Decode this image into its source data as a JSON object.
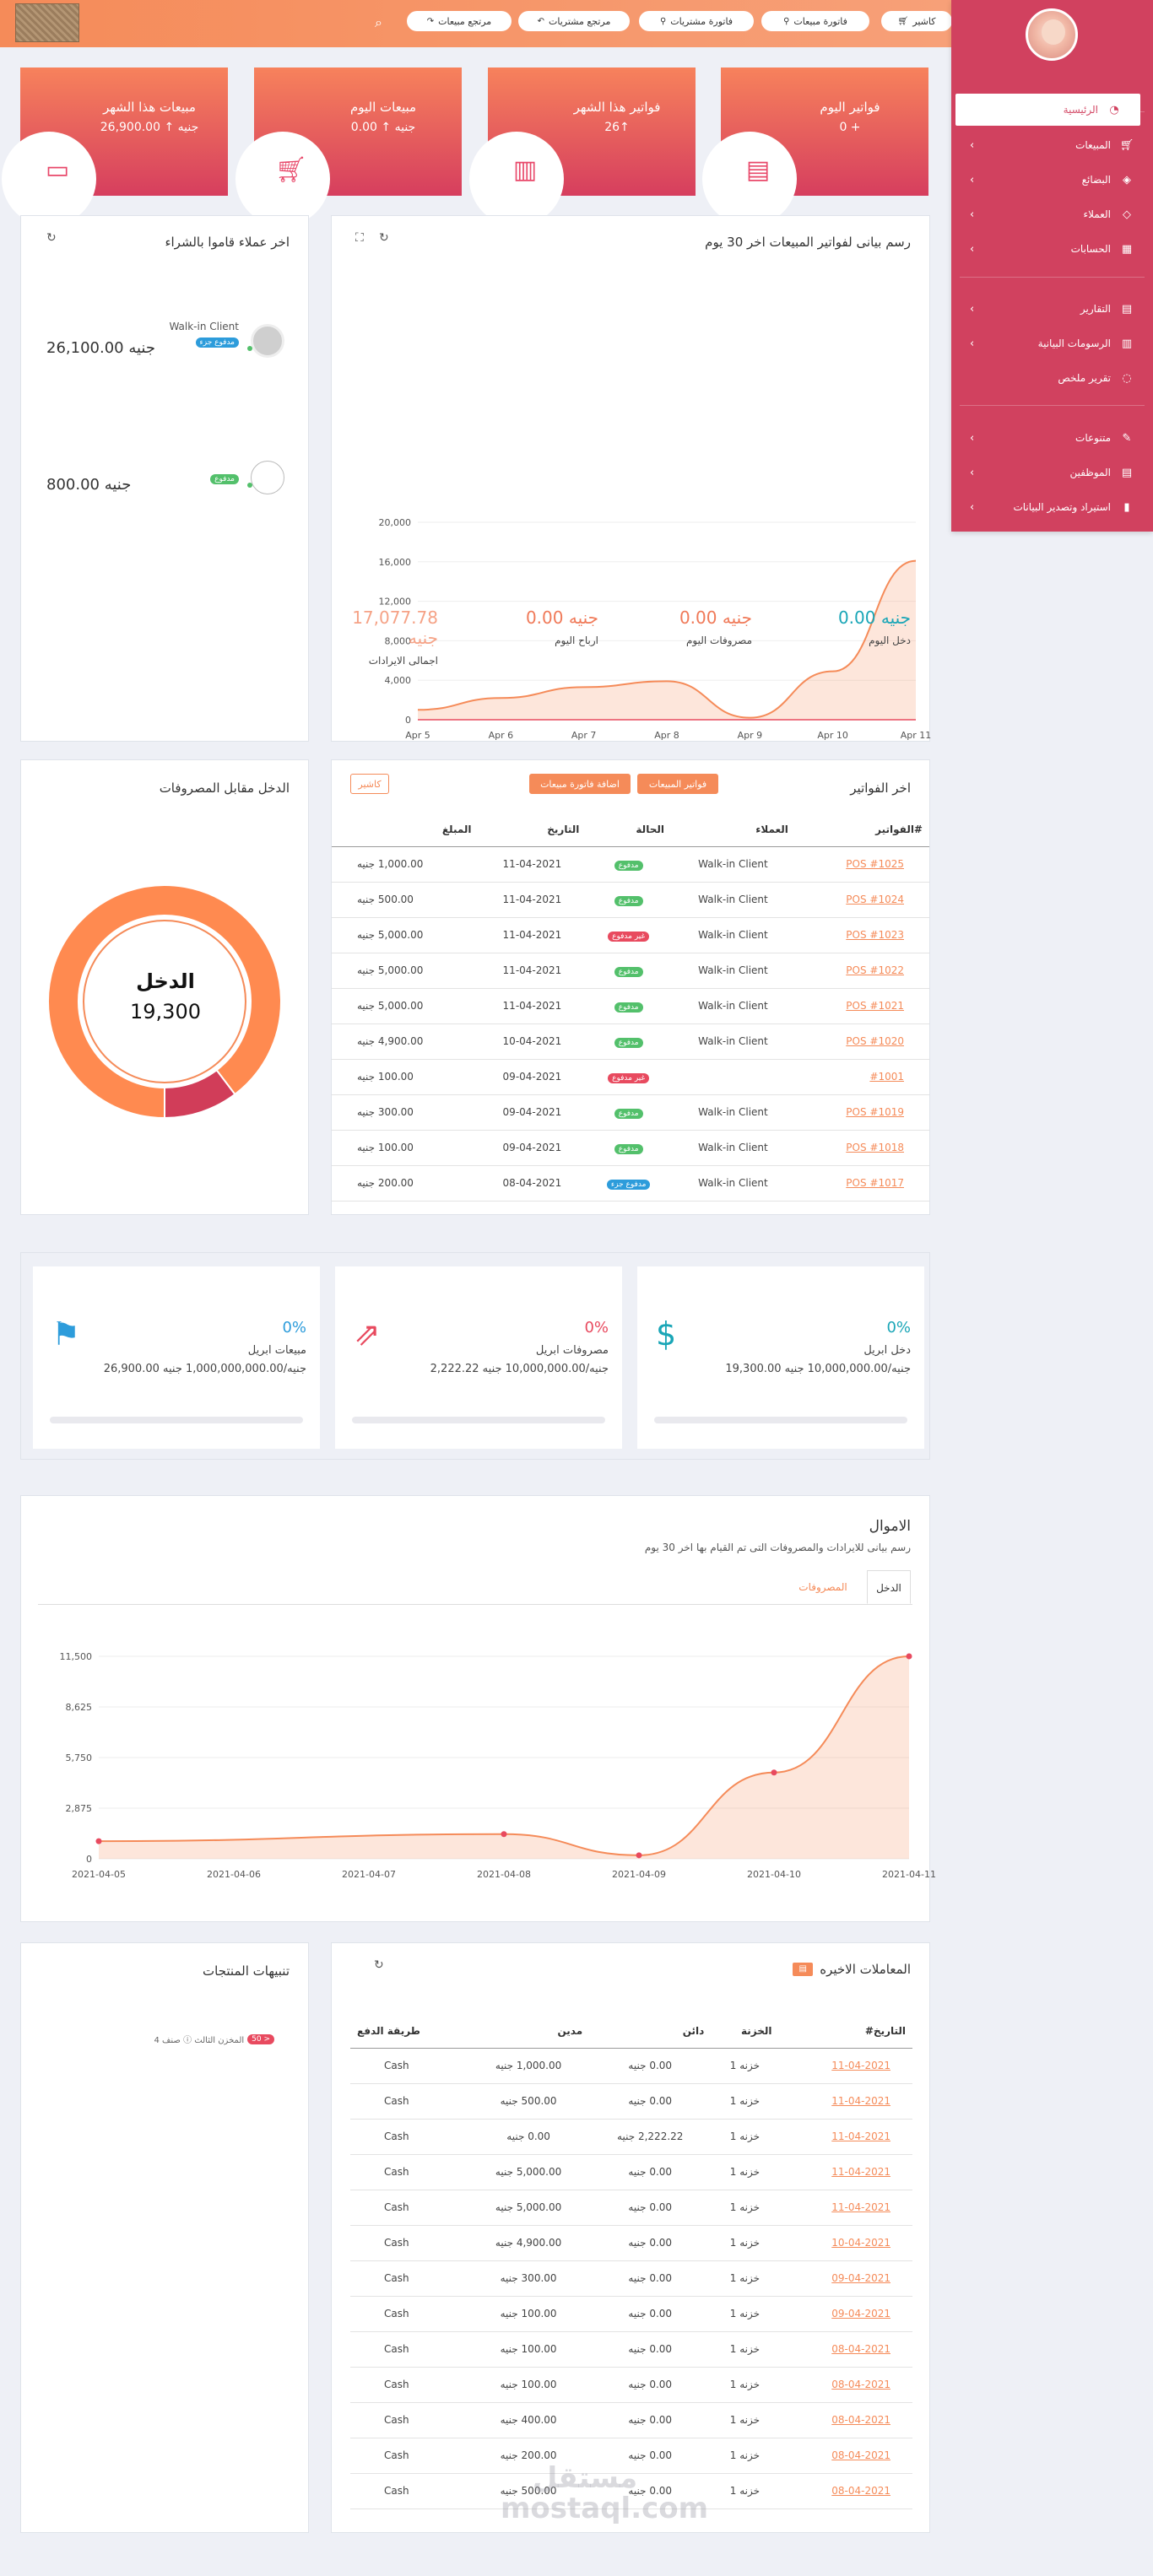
{
  "topbar": {
    "buttons": [
      "كاشير",
      "فاتورة مبيعات",
      "فاتورة مشتريات",
      "مرتجع مشتريات",
      "مرتجع مبيعات"
    ],
    "icons": [
      "cart-icon",
      "bag-icon",
      "bag-icon",
      "reply-icon",
      "share-icon"
    ]
  },
  "sidebar": {
    "items": [
      {
        "label": "الرئيسية",
        "icon": "dashboard-icon",
        "chevron": false,
        "active": true
      },
      {
        "label": "المبيعات",
        "icon": "cart-icon",
        "chevron": true
      },
      {
        "label": "البضائع",
        "icon": "layers-icon",
        "chevron": true
      },
      {
        "label": "العملاء",
        "icon": "diamond-icon",
        "chevron": true
      },
      {
        "label": "الحسابات",
        "icon": "table-icon",
        "chevron": true
      },
      {
        "label": "التقارير",
        "icon": "file-icon",
        "chevron": true
      },
      {
        "label": "الرسومات البيانية",
        "icon": "bar-chart-icon",
        "chevron": true
      },
      {
        "label": "تقرير ملخص",
        "icon": "bulb-icon",
        "chevron": false
      },
      {
        "label": "متنوعات",
        "icon": "edit-icon",
        "chevron": true
      },
      {
        "label": "الموظفين",
        "icon": "file-icon",
        "chevron": true
      },
      {
        "label": "استيراد وتصدير البيانات",
        "icon": "chart-icon",
        "chevron": true
      }
    ]
  },
  "kpis": [
    {
      "title": "فواتير اليوم",
      "value": "0 +",
      "icon": "document-icon"
    },
    {
      "title": "فواتير هذا الشهر",
      "value": "26↑",
      "icon": "notebook-icon"
    },
    {
      "title": "مبيعات اليوم",
      "value": "0.00 ↑ جنيه",
      "icon": "cart-icon"
    },
    {
      "title": "مبيعات هذا الشهر",
      "value": "26,900.00 ↑ جنيه",
      "icon": "wallet-icon"
    }
  ],
  "invoice_chart": {
    "title": "رسم بيانى لفواتير المبيعات اخر 30 يوم",
    "stats": [
      {
        "value": "0.00 جنيه",
        "label": "دخل اليوم",
        "color": "#1aa6b7"
      },
      {
        "value": "0.00 جنيه",
        "label": "مصروفات اليوم",
        "color": "#f07a59"
      },
      {
        "value": "0.00 جنيه",
        "label": "ارباح اليوم",
        "color": "#f07a59"
      },
      {
        "value": "17,077.78 جنيه",
        "label": "اجمالى الايرادات",
        "color": "#f5a286"
      }
    ]
  },
  "last_customers": {
    "title": "اخر عملاء قاموا بالشراء",
    "items": [
      {
        "name": "Walk-in Client",
        "badge": "مدفوع جزء",
        "badge_color": "#2d9cdb",
        "amount": "26,100.00 جنيه"
      },
      {
        "name": "",
        "badge": "مدفوع",
        "badge_color": "#53c06b",
        "amount": "800.00 جنيه"
      }
    ]
  },
  "last_invoices": {
    "title": "اخر الفواتير",
    "buttons": [
      "اضافة فاتورة مبيعات",
      "فواتير المبيعات",
      "كاشير"
    ],
    "headers": [
      "#الفواتير",
      "العملاء",
      "الحالة",
      "التاريخ",
      "المبلغ"
    ],
    "rows": [
      {
        "id": "POS #1025",
        "client": "Walk-in Client",
        "status": "مدفوع",
        "status_color": "#53c06b",
        "date": "11-04-2021",
        "amount": "1,000.00 جنيه"
      },
      {
        "id": "POS #1024",
        "client": "Walk-in Client",
        "status": "مدفوع",
        "status_color": "#53c06b",
        "date": "11-04-2021",
        "amount": "500.00 جنيه"
      },
      {
        "id": "POS #1023",
        "client": "Walk-in Client",
        "status": "غير مدفوع",
        "status_color": "#e84a5f",
        "date": "11-04-2021",
        "amount": "5,000.00 جنيه"
      },
      {
        "id": "POS #1022",
        "client": "Walk-in Client",
        "status": "مدفوع",
        "status_color": "#53c06b",
        "date": "11-04-2021",
        "amount": "5,000.00 جنيه"
      },
      {
        "id": "POS #1021",
        "client": "Walk-in Client",
        "status": "مدفوع",
        "status_color": "#53c06b",
        "date": "11-04-2021",
        "amount": "5,000.00 جنيه"
      },
      {
        "id": "POS #1020",
        "client": "Walk-in Client",
        "status": "مدفوع",
        "status_color": "#53c06b",
        "date": "10-04-2021",
        "amount": "4,900.00 جنيه"
      },
      {
        "id": "#1001",
        "client": "",
        "status": "غير مدفوع",
        "status_color": "#e84a5f",
        "date": "09-04-2021",
        "amount": "100.00 جنيه"
      },
      {
        "id": "POS #1019",
        "client": "Walk-in Client",
        "status": "مدفوع",
        "status_color": "#53c06b",
        "date": "09-04-2021",
        "amount": "300.00 جنيه"
      },
      {
        "id": "POS #1018",
        "client": "Walk-in Client",
        "status": "مدفوع",
        "status_color": "#53c06b",
        "date": "09-04-2021",
        "amount": "100.00 جنيه"
      },
      {
        "id": "POS #1017",
        "client": "Walk-in Client",
        "status": "مدفوع جزء",
        "status_color": "#2d9cdb",
        "date": "08-04-2021",
        "amount": "200.00 جنيه"
      }
    ]
  },
  "income_expense": {
    "title": "الدخل مقابل المصروفات",
    "center_label": "الدخل",
    "center_value": "19,300"
  },
  "month_cards": [
    {
      "pct": "0%",
      "label": "دخل ابريل",
      "value": "19,300.00 جنيه/10,000,000.00 جنيه",
      "color": "#1aa6b7",
      "icon": "money-icon"
    },
    {
      "pct": "0%",
      "label": "مصروفات ابريل",
      "value": "2,222.22 جنيه/10,000,000.00 جنيه",
      "color": "#e84a5f",
      "icon": "external-link-icon"
    },
    {
      "pct": "0%",
      "label": "مبيعات ابريل",
      "value": "26,900.00 جنيه/1,000,000,000.00 جنيه",
      "color": "#2d9cdb",
      "icon": "flag-icon"
    }
  ],
  "money": {
    "title": "الاموال",
    "subtitle": "رسم بيانى للايرادات والمصروفات التى تم القيام بها اخر 30 يوم",
    "tabs": [
      "الدخل",
      "المصروفات"
    ]
  },
  "product_alerts": {
    "title": "تنبيهات المنتجات",
    "item_badge": "50 >",
    "item_text": "صنف 4 ⓘ المخزن الثالث"
  },
  "transactions": {
    "title": "المعاملات الاخيره",
    "headers": [
      "التاريخ#",
      "الخزنة",
      "دائن",
      "مدين",
      "طريقة الدفع"
    ],
    "rows": [
      {
        "date": "11-04-2021",
        "box": "خزنه 1",
        "credit": "0.00 جنيه",
        "debit": "1,000.00 جنيه",
        "method": "Cash"
      },
      {
        "date": "11-04-2021",
        "box": "خزنه 1",
        "credit": "0.00 جنيه",
        "debit": "500.00 جنيه",
        "method": "Cash"
      },
      {
        "date": "11-04-2021",
        "box": "خزنه 1",
        "credit": "2,222.22 جنيه",
        "debit": "0.00 جنيه",
        "method": "Cash"
      },
      {
        "date": "11-04-2021",
        "box": "خزنه 1",
        "credit": "0.00 جنيه",
        "debit": "5,000.00 جنيه",
        "method": "Cash"
      },
      {
        "date": "11-04-2021",
        "box": "خزنه 1",
        "credit": "0.00 جنيه",
        "debit": "5,000.00 جنيه",
        "method": "Cash"
      },
      {
        "date": "10-04-2021",
        "box": "خزنه 1",
        "credit": "0.00 جنيه",
        "debit": "4,900.00 جنيه",
        "method": "Cash"
      },
      {
        "date": "09-04-2021",
        "box": "خزنه 1",
        "credit": "0.00 جنيه",
        "debit": "300.00 جنيه",
        "method": "Cash"
      },
      {
        "date": "09-04-2021",
        "box": "خزنه 1",
        "credit": "0.00 جنيه",
        "debit": "100.00 جنيه",
        "method": "Cash"
      },
      {
        "date": "08-04-2021",
        "box": "خزنه 1",
        "credit": "0.00 جنيه",
        "debit": "100.00 جنيه",
        "method": "Cash"
      },
      {
        "date": "08-04-2021",
        "box": "خزنه 1",
        "credit": "0.00 جنيه",
        "debit": "100.00 جنيه",
        "method": "Cash"
      },
      {
        "date": "08-04-2021",
        "box": "خزنه 1",
        "credit": "0.00 جنيه",
        "debit": "400.00 جنيه",
        "method": "Cash"
      },
      {
        "date": "08-04-2021",
        "box": "خزنه 1",
        "credit": "0.00 جنيه",
        "debit": "200.00 جنيه",
        "method": "Cash"
      },
      {
        "date": "08-04-2021",
        "box": "خزنه 1",
        "credit": "0.00 جنيه",
        "debit": "500.00 جنيه",
        "method": "Cash"
      }
    ]
  },
  "watermark": "مستقل mostaql.com",
  "chart_data": [
    {
      "type": "area",
      "x": [
        "Apr 5",
        "Apr 6",
        "Apr 7",
        "Apr 8",
        "Apr 9",
        "Apr 10",
        "Apr 11"
      ],
      "series": [
        {
          "values": [
            1000,
            2200,
            3300,
            3900,
            200,
            4900,
            16100
          ]
        }
      ],
      "ylim": [
        0,
        20000
      ],
      "yticks": [
        0,
        4000,
        8000,
        12000,
        16000,
        20000
      ],
      "color": "#f58b59"
    },
    {
      "type": "pie",
      "categories": [
        "الدخل",
        "المصروفات"
      ],
      "values": [
        19300,
        2222.22
      ],
      "colors": [
        "#ff8a50",
        "#d13d59"
      ]
    },
    {
      "type": "area",
      "x": [
        "2021-04-05",
        "2021-04-06",
        "2021-04-07",
        "2021-04-08",
        "2021-04-09",
        "2021-04-10",
        "2021-04-11"
      ],
      "series": [
        {
          "values": [
            1000,
            null,
            null,
            1400,
            200,
            4900,
            11500
          ]
        }
      ],
      "yticks": [
        0,
        2875,
        5750,
        8625,
        11500
      ],
      "ylim": [
        0,
        11500
      ],
      "color": "#f58b59"
    }
  ]
}
